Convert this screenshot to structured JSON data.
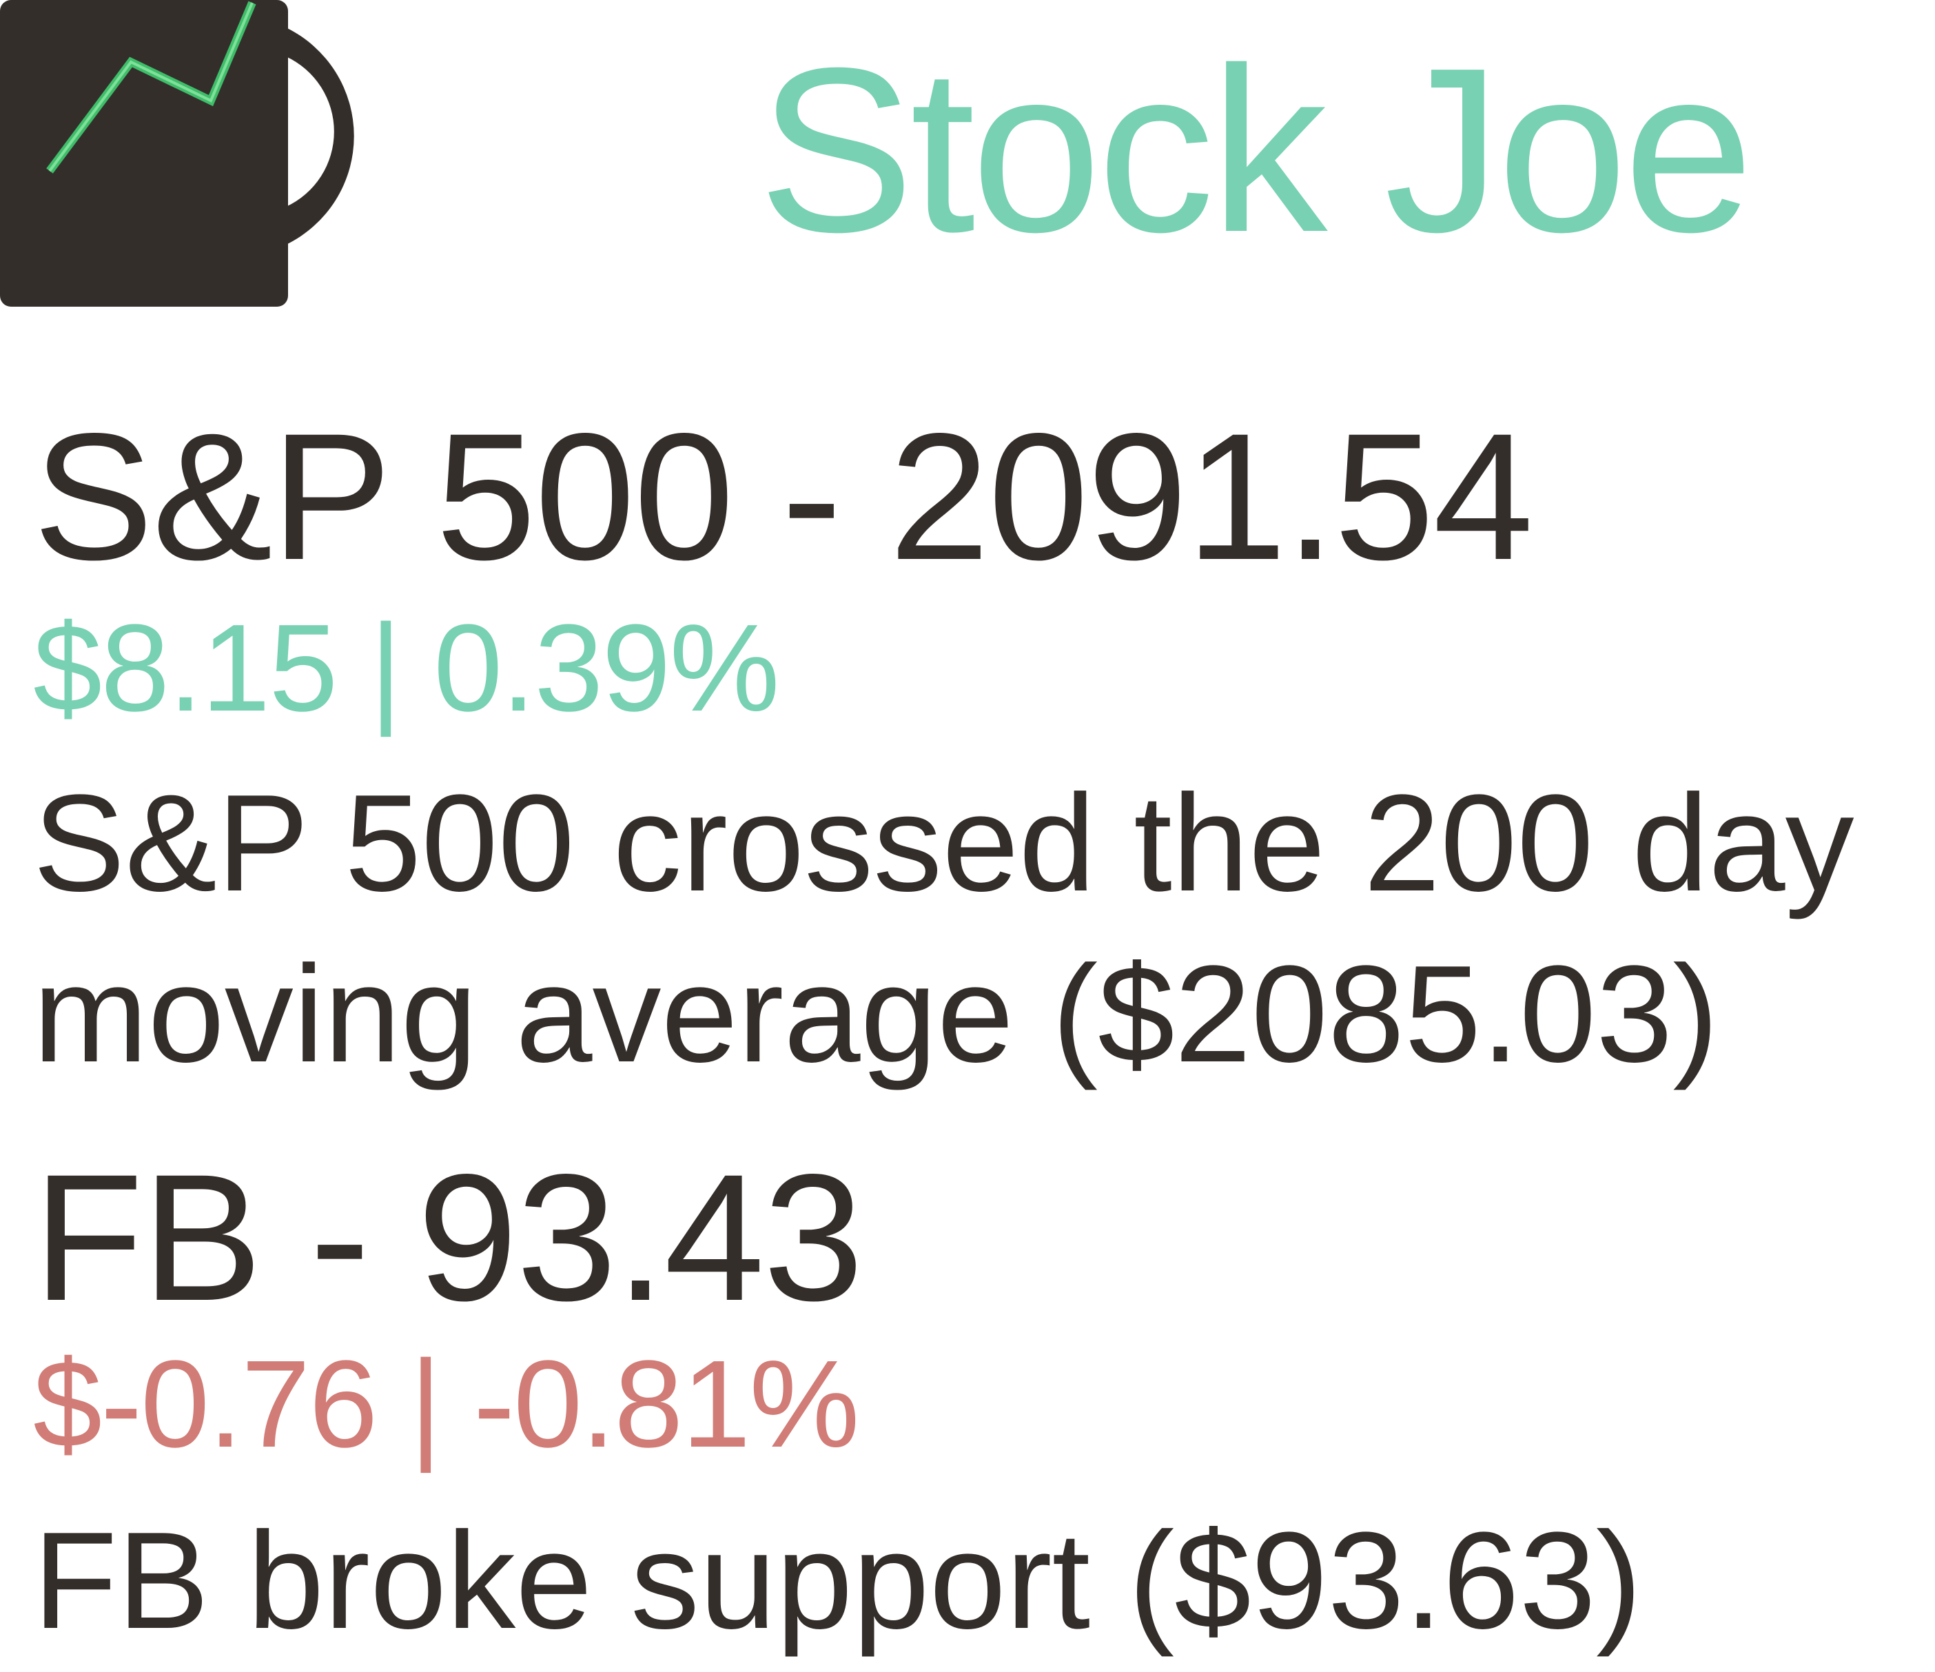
{
  "app": {
    "title": "Stock Joe",
    "logo_icon": "coffee-mug-stock-chart-icon"
  },
  "colors": {
    "brand": "#78d1b2",
    "text": "#342e2b",
    "positive": "#78d1b2",
    "negative": "#d17c76",
    "chart_line": "#3fbe6a"
  },
  "stocks": [
    {
      "heading": "S&P 500 - 2091.54",
      "change": "$8.15 | 0.39%",
      "direction": "up",
      "note_lines": [
        "S&P 500 crossed the 200 day",
        "moving average ($2085.03)"
      ]
    },
    {
      "heading": "FB - 93.43",
      "change": "$-0.76 | -0.81%",
      "direction": "down",
      "note_lines": [
        "FB broke support ($93.63)"
      ]
    }
  ]
}
